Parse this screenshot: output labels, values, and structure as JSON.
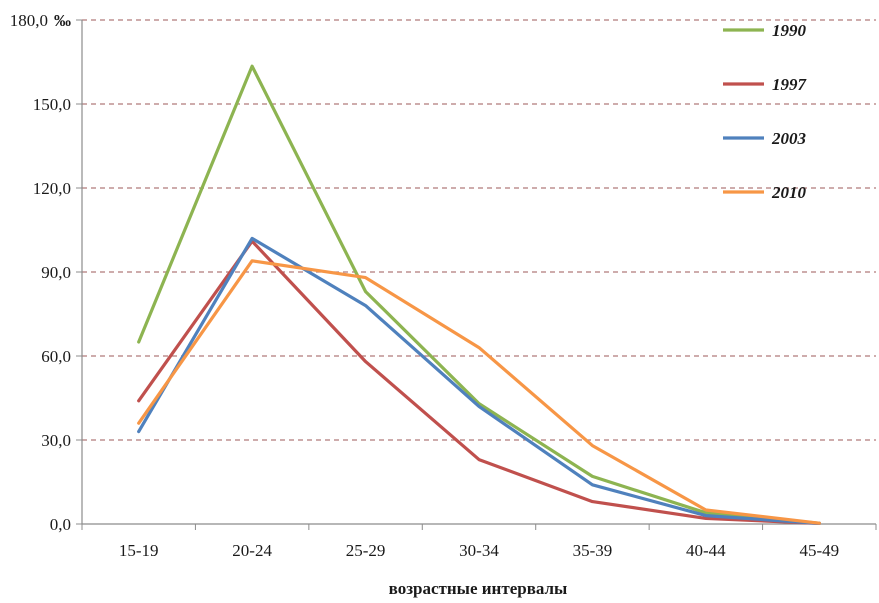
{
  "chart_data": {
    "type": "line",
    "categories": [
      "15-19",
      "20-24",
      "25-29",
      "30-34",
      "35-39",
      "40-44",
      "45-49"
    ],
    "series": [
      {
        "name": "1990",
        "color": "#8db451",
        "values": [
          65,
          163.5,
          83,
          43,
          17,
          4,
          0.3
        ]
      },
      {
        "name": "1997",
        "color": "#c0504d",
        "values": [
          44,
          101,
          58,
          23,
          8,
          2,
          0.2
        ]
      },
      {
        "name": "2003",
        "color": "#4f81bd",
        "values": [
          33,
          102,
          78,
          42,
          14,
          3,
          0.2
        ]
      },
      {
        "name": "2010",
        "color": "#f79646",
        "values": [
          36,
          94,
          88,
          63,
          28,
          5,
          0.3
        ]
      }
    ],
    "yticks": [
      "0,0",
      "30,0",
      "60,0",
      "90,0",
      "120,0",
      "150,0",
      "180,0"
    ],
    "yunit": "‰",
    "xlabel": "возрастные интервалы",
    "ylim": [
      0,
      180
    ],
    "grid": "horizontal dashed",
    "gridColor": "#b07a7a",
    "legend_position": "top-right"
  }
}
